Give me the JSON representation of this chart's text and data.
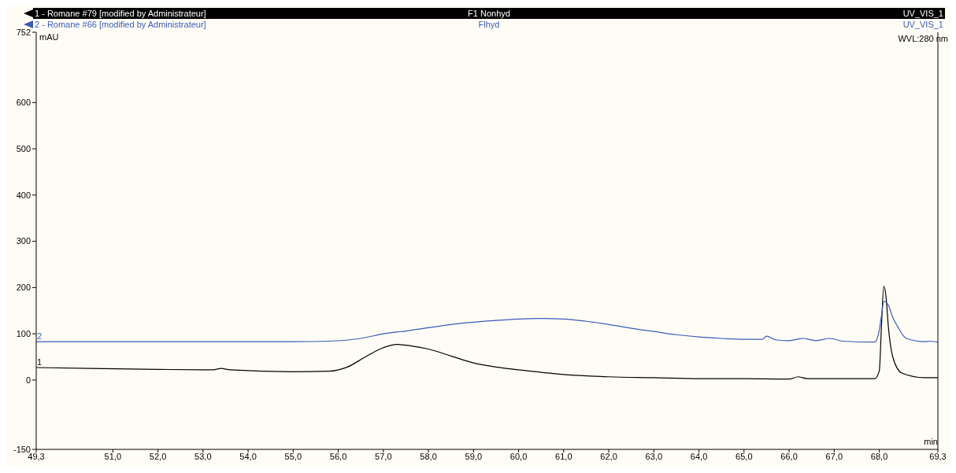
{
  "chart_data": {
    "type": "line",
    "xlabel": "min",
    "ylabel": "mAU",
    "annotations": [
      "F1 Nonhyd",
      "UV_VIS_1",
      "Flhyd",
      "UV_VIS_1",
      "WVL:280 nm",
      {
        "text": "1",
        "x": 49.3,
        "y": 27
      },
      {
        "text": "2",
        "x": 49.3,
        "y": 83
      }
    ],
    "legend": "top",
    "marker": "none",
    "line_style": "solid",
    "xlim": [
      49.3,
      69.3
    ],
    "xticks": [
      {
        "value": 49.3,
        "label": "49,3"
      },
      {
        "value": 51,
        "label": "51,0"
      },
      {
        "value": 52,
        "label": "52,0"
      },
      {
        "value": 53,
        "label": "53,0"
      },
      {
        "value": 54,
        "label": "54,0"
      },
      {
        "value": 55,
        "label": "55,0"
      },
      {
        "value": 56,
        "label": "56,0"
      },
      {
        "value": 57,
        "label": "57,0"
      },
      {
        "value": 58,
        "label": "58,0"
      },
      {
        "value": 59,
        "label": "59,0"
      },
      {
        "value": 60,
        "label": "60,0"
      },
      {
        "value": 61,
        "label": "61,0"
      },
      {
        "value": 62,
        "label": "62,0"
      },
      {
        "value": 63,
        "label": "63,0"
      },
      {
        "value": 64,
        "label": "64,0"
      },
      {
        "value": 65,
        "label": "65,0"
      },
      {
        "value": 66,
        "label": "66,0"
      },
      {
        "value": 67,
        "label": "67,0"
      },
      {
        "value": 68,
        "label": "68,0"
      },
      {
        "value": 69.3,
        "label": "69,3"
      }
    ],
    "ylim": [
      -150,
      752
    ],
    "yticks": [
      -150,
      0,
      100,
      200,
      300,
      400,
      500,
      600,
      752
    ],
    "series": [
      {
        "name": "1 - Romane #79 [modified by Administrateur]",
        "color": "#000000",
        "x": [
          49.3,
          50.5,
          52,
          53.2,
          53.4,
          53.6,
          55,
          55.8,
          56.2,
          56.6,
          57,
          57.3,
          57.6,
          58,
          58.5,
          59,
          59.5,
          60,
          61,
          62,
          63,
          64,
          65,
          66,
          66.2,
          66.4,
          67,
          67.9,
          68,
          68.05,
          68.1,
          68.15,
          68.2,
          68.3,
          68.5,
          69,
          69.3
        ],
        "values": [
          27,
          25,
          23,
          22,
          25,
          22,
          18,
          19,
          28,
          50,
          70,
          77,
          74,
          67,
          52,
          37,
          28,
          22,
          12,
          7,
          5,
          3,
          3,
          2,
          7,
          3,
          3,
          3,
          20,
          120,
          203,
          180,
          117,
          50,
          15,
          5,
          5
        ]
      },
      {
        "name": "2 - Romane #66 [modified by Administrateur]",
        "color": "#3a5bb8",
        "x": [
          49.3,
          52,
          55,
          55.8,
          56.5,
          57,
          57.5,
          58,
          58.5,
          59,
          59.5,
          60,
          60.5,
          61,
          61.5,
          62,
          62.5,
          63,
          63.5,
          64,
          64.5,
          65,
          65.4,
          65.5,
          65.7,
          66,
          66.3,
          66.6,
          66.9,
          67.2,
          67.9,
          68,
          68.05,
          68.1,
          68.2,
          68.3,
          68.4,
          68.6,
          69,
          69.1,
          69.3
        ],
        "values": [
          83,
          83,
          83,
          84,
          90,
          100,
          106,
          113,
          120,
          125,
          129,
          132,
          133,
          132,
          127,
          120,
          112,
          105,
          98,
          93,
          90,
          88,
          88,
          95,
          87,
          85,
          90,
          85,
          90,
          84,
          82,
          108,
          140,
          170,
          162,
          135,
          117,
          90,
          83,
          84,
          82
        ]
      }
    ]
  }
}
